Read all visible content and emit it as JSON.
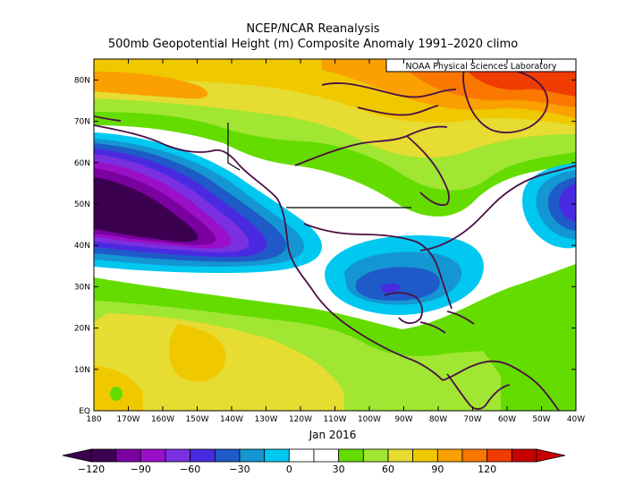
{
  "title_line1": "NCEP/NCAR Reanalysis",
  "title_line2": "500mb Geopotential Height (m) Composite Anomaly 1991–2020 climo",
  "credit": "NOAA Physical Sciences Laboratory",
  "date_label": "Jan 2016",
  "lat_ticks": [
    "EQ",
    "10N",
    "20N",
    "30N",
    "40N",
    "50N",
    "60N",
    "70N",
    "80N"
  ],
  "lon_ticks": [
    "180",
    "170W",
    "160W",
    "150W",
    "140W",
    "130W",
    "120W",
    "110W",
    "100W",
    "90W",
    "80W",
    "70W",
    "60W",
    "50W",
    "40W"
  ],
  "colorbar": {
    "labels": [
      "−120",
      "−90",
      "−60",
      "−30",
      "0",
      "30",
      "60",
      "90",
      "120"
    ],
    "colors": [
      "#3c0050",
      "#7a00a0",
      "#9a10c8",
      "#7a30e0",
      "#4a2ae0",
      "#1e5ac8",
      "#1496d2",
      "#00c8f0",
      "#ffffff",
      "#ffffff",
      "#64dc00",
      "#a0e632",
      "#e6dc32",
      "#f0c800",
      "#faa000",
      "#fa7800",
      "#f03c00",
      "#c80000"
    ]
  }
}
